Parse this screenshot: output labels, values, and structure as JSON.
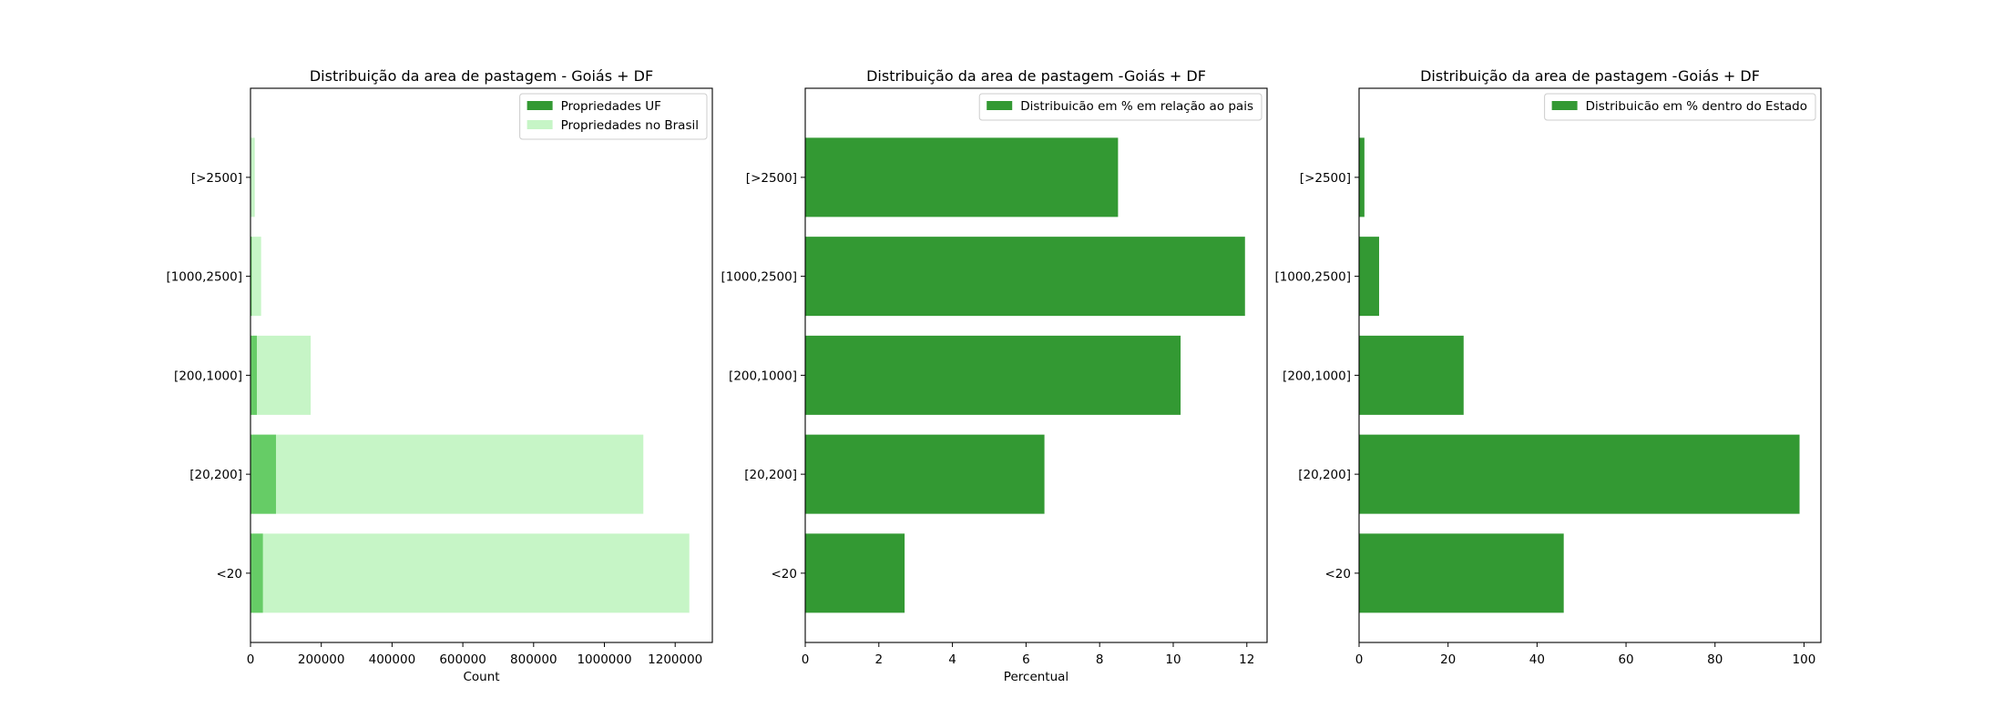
{
  "chart_data": [
    {
      "type": "bar",
      "orientation": "horizontal",
      "stacked": "overlay",
      "title": "Distribuição da area de pastagem - Goiás + DF",
      "xlabel": "Count",
      "ylabel": "",
      "categories": [
        "<20",
        "[20,200]",
        "[200,1000]",
        "[1000,2500]",
        "[>2500]"
      ],
      "series": [
        {
          "name": "Propriedades no Brasil",
          "color": "#c6f5c6",
          "values": [
            1240000,
            1110000,
            170000,
            30000,
            12000
          ]
        },
        {
          "name": "Propriedades UF",
          "color": "#66cc66",
          "values": [
            35000,
            72000,
            18000,
            3500,
            1000
          ]
        }
      ],
      "xlim": [
        0,
        1305000
      ],
      "xticks": [
        0,
        200000,
        400000,
        600000,
        800000,
        1000000,
        1200000
      ],
      "legend": {
        "placement": "top-right",
        "entries": [
          "Propriedades UF",
          "Propriedades no Brasil"
        ],
        "colors": [
          "#339933",
          "#c6f5c6"
        ]
      }
    },
    {
      "type": "bar",
      "orientation": "horizontal",
      "title": "Distribuição da area de pastagem -Goiás + DF",
      "xlabel": "Percentual",
      "ylabel": "",
      "categories": [
        "<20",
        "[20,200]",
        "[200,1000]",
        "[1000,2500]",
        "[>2500]"
      ],
      "series": [
        {
          "name": "Distribuicão em % em relação ao pais",
          "color": "#339933",
          "values": [
            2.7,
            6.5,
            10.2,
            11.95,
            8.5
          ]
        }
      ],
      "xlim": [
        0,
        12.55
      ],
      "xticks": [
        0,
        2,
        4,
        6,
        8,
        10,
        12
      ],
      "legend": {
        "placement": "top-right",
        "entries": [
          "Distribuicão em % em relação ao pais"
        ],
        "colors": [
          "#339933"
        ]
      }
    },
    {
      "type": "bar",
      "orientation": "horizontal",
      "title": "Distribuição da area de pastagem -Goiás + DF",
      "xlabel": "",
      "ylabel": "",
      "categories": [
        "<20",
        "[20,200]",
        "[200,1000]",
        "[1000,2500]",
        "[>2500]"
      ],
      "series": [
        {
          "name": "Distribuicão em % dentro do Estado",
          "color": "#339933",
          "values": [
            46,
            99,
            23.5,
            4.5,
            1.2
          ]
        }
      ],
      "xlim": [
        0,
        103.8
      ],
      "xticks": [
        0,
        20,
        40,
        60,
        80,
        100
      ],
      "legend": {
        "placement": "top-right",
        "entries": [
          "Distribuicão em % dentro do Estado"
        ],
        "colors": [
          "#339933"
        ]
      }
    }
  ]
}
